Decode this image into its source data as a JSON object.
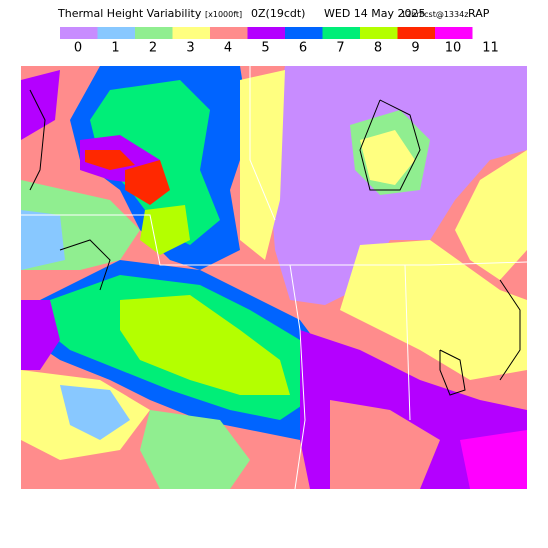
{
  "header": {
    "title": [
      "Thermal Height Variability",
      "[x1000ft]",
      "0Z(19cdt)",
      "WED 14 May 2025",
      "12hrFcst@1334z",
      "RAP"
    ]
  },
  "legend": {
    "labels": [
      0,
      1,
      2,
      3,
      4,
      5,
      6,
      7,
      8,
      9,
      10,
      11
    ],
    "colors": [
      "#c88cff",
      "#88c8ff",
      "#90ee90",
      "#ffff80",
      "#ff8c8c",
      "#b400ff",
      "#0064ff",
      "#00ee78",
      "#b4ff00",
      "#ff2800",
      "#ff00ff"
    ]
  }
}
